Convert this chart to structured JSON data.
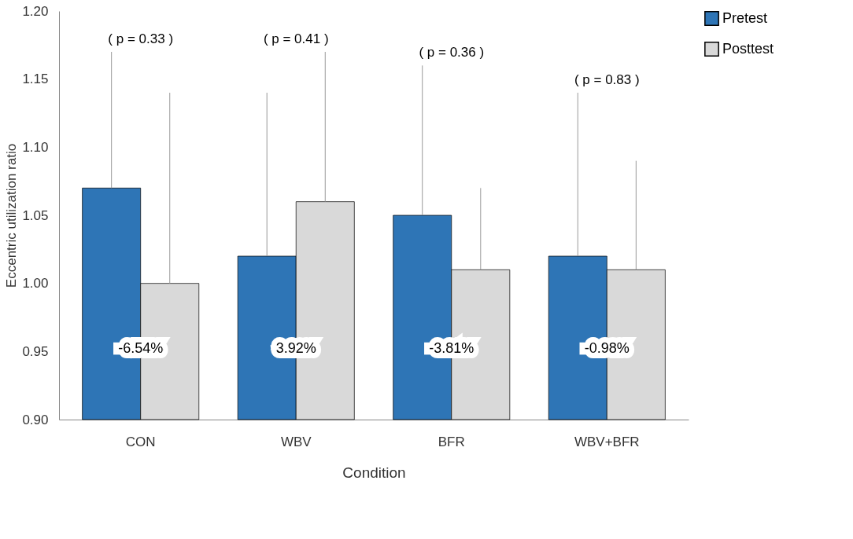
{
  "chart_data": {
    "type": "bar",
    "xlabel": "Condition",
    "ylabel": "Eccentric utilization ratio",
    "categories": [
      "CON",
      "WBV",
      "BFR",
      "WBV+BFR"
    ],
    "series": [
      {
        "name": "Pretest",
        "color": "#2e75b6",
        "values": [
          1.07,
          1.02,
          1.05,
          1.02
        ],
        "errors": [
          [
            1.07,
            1.17
          ],
          [
            1.02,
            1.14
          ],
          [
            1.05,
            1.16
          ],
          [
            1.02,
            1.14
          ]
        ]
      },
      {
        "name": "Posttest",
        "color": "#d9d9d9",
        "values": [
          1.0,
          1.06,
          1.01,
          1.01
        ],
        "errors": [
          [
            1.0,
            1.14
          ],
          [
            1.06,
            1.17
          ],
          [
            1.01,
            1.07
          ],
          [
            1.01,
            1.09
          ]
        ]
      }
    ],
    "ylim": [
      0.9,
      1.2
    ],
    "yticks": [
      {
        "value": 0.9,
        "label": "0.90"
      },
      {
        "value": 0.95,
        "label": "0.95"
      },
      {
        "value": 1.0,
        "label": "1.00"
      },
      {
        "value": 1.05,
        "label": "1.05"
      },
      {
        "value": 1.1,
        "label": "1.10"
      },
      {
        "value": 1.15,
        "label": "1.15"
      },
      {
        "value": 1.2,
        "label": "1.20"
      }
    ],
    "annotations": [
      "( p = 0.33 )",
      "( p = 0.41 )",
      "( p = 0.36 )",
      "( p = 0.83 )",
      "-6.54%",
      "3.92%",
      "-3.81%",
      "-0.98%"
    ],
    "grid": false,
    "legend": "right"
  }
}
